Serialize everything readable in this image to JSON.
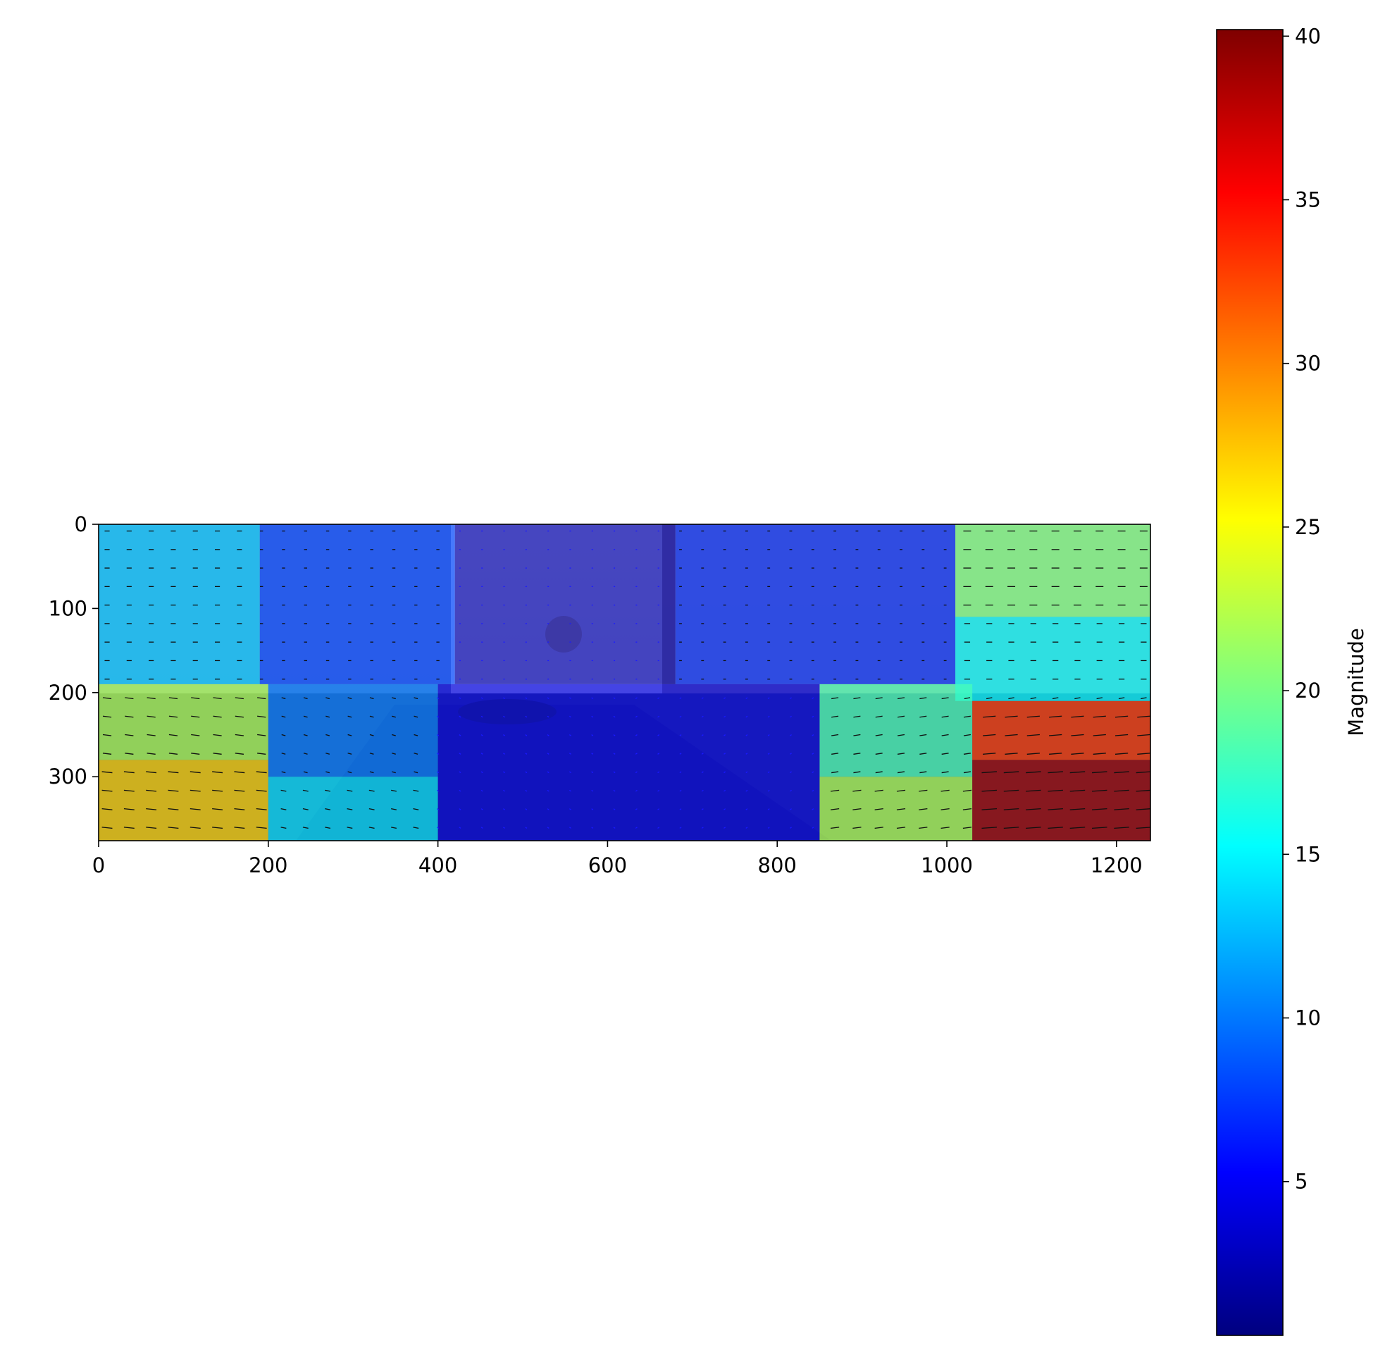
{
  "chart_data": {
    "type": "heatmap",
    "title": "",
    "xlabel": "",
    "ylabel": "",
    "xlim": [
      0,
      1240
    ],
    "ylim": [
      376,
      0
    ],
    "x_ticks": [
      0,
      200,
      400,
      600,
      800,
      1000,
      1200
    ],
    "y_ticks": [
      0,
      100,
      200,
      300
    ],
    "grid": false,
    "background": "street scene photograph with optical-flow quiver arrows overlaid",
    "colorbar": {
      "label": "Magnitude",
      "colormap": "jet",
      "range": [
        0.3,
        40.2
      ],
      "ticks": [
        5,
        10,
        15,
        20,
        25,
        30,
        35,
        40
      ],
      "stops": [
        "#00007f",
        "#0000ff",
        "#007fff",
        "#00ffff",
        "#7fff7f",
        "#ffff00",
        "#ff7f00",
        "#ff0000",
        "#7f0000"
      ]
    },
    "magnitude_regions": [
      {
        "x": [
          0,
          190
        ],
        "y": [
          0,
          190
        ],
        "magnitude": 13
      },
      {
        "x": [
          190,
          420
        ],
        "y": [
          0,
          190
        ],
        "magnitude": 8
      },
      {
        "x": [
          420,
          680
        ],
        "y": [
          0,
          190
        ],
        "magnitude": 2
      },
      {
        "x": [
          680,
          1010
        ],
        "y": [
          0,
          190
        ],
        "magnitude": 7
      },
      {
        "x": [
          1010,
          1240
        ],
        "y": [
          0,
          110
        ],
        "magnitude": 20
      },
      {
        "x": [
          1010,
          1240
        ],
        "y": [
          110,
          210
        ],
        "magnitude": 15
      },
      {
        "x": [
          0,
          200
        ],
        "y": [
          190,
          280
        ],
        "magnitude": 22
      },
      {
        "x": [
          0,
          200
        ],
        "y": [
          280,
          376
        ],
        "magnitude": 27
      },
      {
        "x": [
          200,
          400
        ],
        "y": [
          190,
          300
        ],
        "magnitude": 10
      },
      {
        "x": [
          200,
          400
        ],
        "y": [
          300,
          376
        ],
        "magnitude": 14
      },
      {
        "x": [
          400,
          850
        ],
        "y": [
          190,
          376
        ],
        "magnitude": 4
      },
      {
        "x": [
          850,
          1030
        ],
        "y": [
          190,
          300
        ],
        "magnitude": 18
      },
      {
        "x": [
          850,
          1030
        ],
        "y": [
          300,
          376
        ],
        "magnitude": 22
      },
      {
        "x": [
          1030,
          1240
        ],
        "y": [
          210,
          280
        ],
        "magnitude": 33
      },
      {
        "x": [
          1030,
          1240
        ],
        "y": [
          280,
          376
        ],
        "magnitude": 39
      }
    ]
  }
}
